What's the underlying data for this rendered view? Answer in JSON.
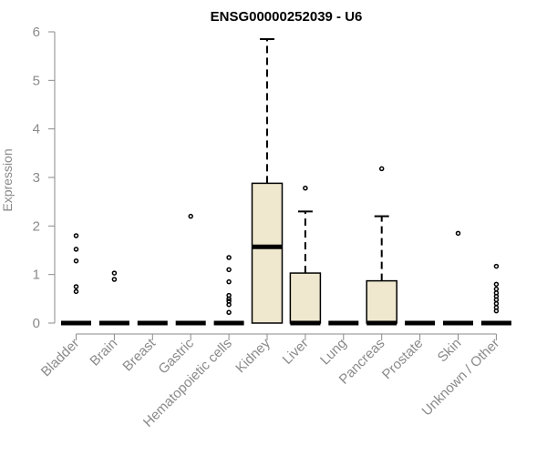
{
  "chart_data": {
    "type": "boxplot",
    "title": "ENSG00000252039 - U6",
    "ylabel": "Expression",
    "xlabel": "",
    "ylim": [
      0,
      6
    ],
    "yticks": [
      "0",
      "1",
      "2",
      "3",
      "4",
      "5",
      "6"
    ],
    "grid": false,
    "colors": {
      "box_fill": "#efe8cf",
      "stroke": "#000000",
      "axis": "#8a8a8a"
    },
    "categories": [
      "Bladder",
      "Brain",
      "Breast",
      "Gastric",
      "Hematopoietic cells",
      "Kidney",
      "Liver",
      "Lung",
      "Pancreas",
      "Prostate",
      "Skin",
      "Unknown / Other"
    ],
    "boxes": [
      {
        "q1": 0,
        "median": 0,
        "q3": 0,
        "whisker_low": 0,
        "whisker_high": 0,
        "outliers": [
          0.65,
          0.75,
          1.28,
          1.52,
          1.8
        ]
      },
      {
        "q1": 0,
        "median": 0,
        "q3": 0,
        "whisker_low": 0,
        "whisker_high": 0,
        "outliers": [
          0.9,
          1.03
        ]
      },
      {
        "q1": 0,
        "median": 0,
        "q3": 0,
        "whisker_low": 0,
        "whisker_high": 0,
        "outliers": []
      },
      {
        "q1": 0,
        "median": 0,
        "q3": 0,
        "whisker_low": 0,
        "whisker_high": 0,
        "outliers": [
          2.2
        ]
      },
      {
        "q1": 0,
        "median": 0,
        "q3": 0,
        "whisker_low": 0,
        "whisker_high": 0,
        "outliers": [
          0.22,
          0.38,
          0.45,
          0.5,
          0.57,
          0.85,
          1.1,
          1.35
        ]
      },
      {
        "q1": 0,
        "median": 1.57,
        "q3": 2.88,
        "whisker_low": 0,
        "whisker_high": 5.85,
        "outliers": []
      },
      {
        "q1": 0,
        "median": 0,
        "q3": 1.03,
        "whisker_low": 0,
        "whisker_high": 2.3,
        "outliers": [
          2.78
        ]
      },
      {
        "q1": 0,
        "median": 0,
        "q3": 0,
        "whisker_low": 0,
        "whisker_high": 0,
        "outliers": []
      },
      {
        "q1": 0,
        "median": 0,
        "q3": 0.87,
        "whisker_low": 0,
        "whisker_high": 2.2,
        "outliers": [
          3.18
        ]
      },
      {
        "q1": 0,
        "median": 0,
        "q3": 0,
        "whisker_low": 0,
        "whisker_high": 0,
        "outliers": []
      },
      {
        "q1": 0,
        "median": 0,
        "q3": 0,
        "whisker_low": 0,
        "whisker_high": 0,
        "outliers": [
          1.85
        ]
      },
      {
        "q1": 0,
        "median": 0,
        "q3": 0,
        "whisker_low": 0,
        "whisker_high": 0,
        "outliers": [
          0.25,
          0.32,
          0.4,
          0.48,
          0.55,
          0.62,
          0.7,
          0.8,
          1.17
        ]
      }
    ]
  }
}
